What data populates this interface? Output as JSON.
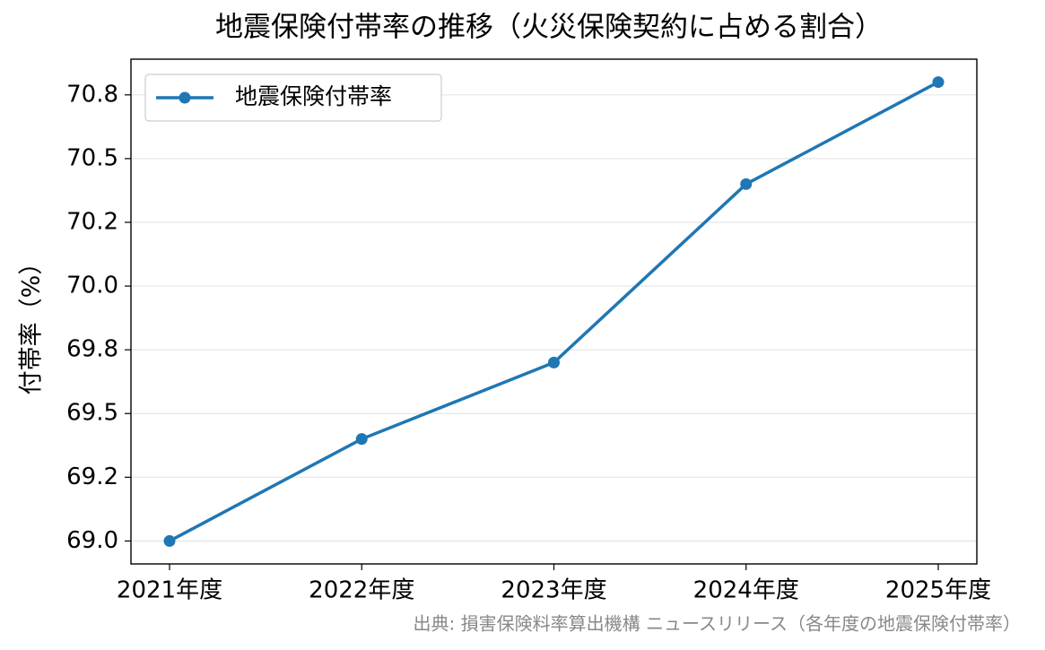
{
  "chart_data": {
    "type": "line",
    "title": "地震保険付帯率の推移（火災保険契約に占める割合）",
    "y_label": "付帯率（%）",
    "source": "出典: 損害保険料率算出機構 ニュースリリース（各年度の地震保険付帯率）",
    "categories": [
      "2021年度",
      "2022年度",
      "2023年度",
      "2024年度",
      "2025年度"
    ],
    "series": [
      {
        "name": "地震保険付帯率",
        "color": "#1f77b4",
        "values": [
          69.0,
          69.4,
          69.7,
          70.4,
          70.8
        ]
      }
    ],
    "ylim": [
      68.91,
      70.89
    ],
    "yticks": [
      {
        "value": 69,
        "label": "69.0"
      },
      {
        "value": 69.25,
        "label": "69.2"
      },
      69.5,
      {
        "value": 69.75,
        "label": "69.8"
      },
      {
        "value": 70,
        "label": "70.0"
      },
      {
        "value": 70.25,
        "label": "70.2"
      },
      70.5,
      {
        "value": 70.75,
        "label": "70.8"
      }
    ],
    "grid": true,
    "legend": "upper-left"
  }
}
